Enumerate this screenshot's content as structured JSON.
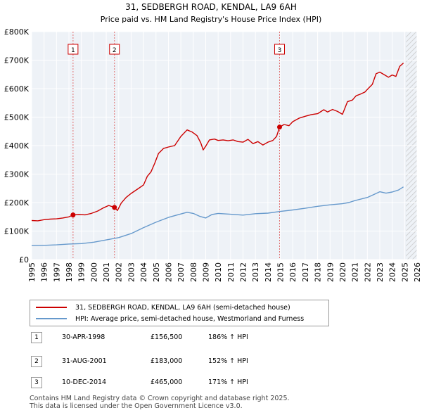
{
  "chart_data": {
    "type": "line",
    "title": "31, SEDBERGH ROAD, KENDAL, LA9 6AH",
    "subtitle": "Price paid vs. HM Land Registry's House Price Index (HPI)",
    "ylim": [
      0,
      800000
    ],
    "xlim": [
      1995,
      2026
    ],
    "y_ticks": [
      {
        "value": 0,
        "label": "£0"
      },
      {
        "value": 100000,
        "label": "£100K"
      },
      {
        "value": 200000,
        "label": "£200K"
      },
      {
        "value": 300000,
        "label": "£300K"
      },
      {
        "value": 400000,
        "label": "£400K"
      },
      {
        "value": 500000,
        "label": "£500K"
      },
      {
        "value": 600000,
        "label": "£600K"
      },
      {
        "value": 700000,
        "label": "£700K"
      },
      {
        "value": 800000,
        "label": "£800K"
      }
    ],
    "x_ticks": [
      "1995",
      "1996",
      "1997",
      "1998",
      "1999",
      "2000",
      "2001",
      "2002",
      "2003",
      "2004",
      "2005",
      "2006",
      "2007",
      "2008",
      "2009",
      "2010",
      "2011",
      "2012",
      "2013",
      "2014",
      "2015",
      "2016",
      "2017",
      "2018",
      "2019",
      "2020",
      "2021",
      "2022",
      "2023",
      "2024",
      "2025",
      "2026"
    ],
    "grid": true,
    "hatch_from": 2025.1,
    "series": [
      {
        "name": "31, SEDBERGH ROAD, KENDAL, LA9 6AH (semi-detached house)",
        "color": "#cc0000",
        "x": [
          1995.0,
          1995.5,
          1996.0,
          1996.5,
          1997.0,
          1997.5,
          1998.0,
          1998.33,
          1998.8,
          1999.3,
          1999.8,
          2000.3,
          2000.8,
          2001.2,
          2001.66,
          2001.9,
          2002.2,
          2002.6,
          2003.0,
          2003.5,
          2004.0,
          2004.3,
          2004.6,
          2004.9,
          2005.2,
          2005.6,
          2006.0,
          2006.5,
          2007.0,
          2007.5,
          2007.9,
          2008.3,
          2008.6,
          2008.8,
          2009.0,
          2009.3,
          2009.7,
          2010.0,
          2010.4,
          2010.8,
          2011.2,
          2011.6,
          2012.0,
          2012.4,
          2012.8,
          2013.2,
          2013.6,
          2014.0,
          2014.4,
          2014.7,
          2014.94,
          2015.3,
          2015.7,
          2016.0,
          2016.5,
          2017.0,
          2017.5,
          2018.0,
          2018.5,
          2018.8,
          2019.2,
          2019.6,
          2020.0,
          2020.4,
          2020.8,
          2021.1,
          2021.4,
          2021.8,
          2022.1,
          2022.4,
          2022.7,
          2023.0,
          2023.4,
          2023.7,
          2024.0,
          2024.3,
          2024.6,
          2024.9
        ],
        "values": [
          137000,
          136000,
          140000,
          142000,
          143000,
          146000,
          150000,
          156500,
          158000,
          157000,
          162000,
          170000,
          182000,
          190000,
          183000,
          172000,
          198000,
          218000,
          232000,
          247000,
          262000,
          292000,
          308000,
          338000,
          372000,
          390000,
          395000,
          400000,
          432000,
          455000,
          448000,
          435000,
          410000,
          385000,
          398000,
          420000,
          423000,
          418000,
          420000,
          417000,
          420000,
          414000,
          412000,
          422000,
          407000,
          414000,
          402000,
          412000,
          418000,
          432000,
          465000,
          474000,
          470000,
          484000,
          496000,
          503000,
          509000,
          512000,
          526000,
          518000,
          527000,
          520000,
          510000,
          554000,
          560000,
          575000,
          580000,
          588000,
          602000,
          615000,
          652000,
          658000,
          648000,
          640000,
          648000,
          643000,
          678000,
          690000
        ]
      },
      {
        "name": "HPI: Average price, semi-detached house, Westmorland and Furness",
        "color": "#6699cc",
        "x": [
          1995.0,
          1996.0,
          1997.0,
          1998.0,
          1999.0,
          2000.0,
          2001.0,
          2002.0,
          2003.0,
          2004.0,
          2005.0,
          2006.0,
          2007.0,
          2007.5,
          2008.0,
          2008.5,
          2009.0,
          2009.5,
          2010.0,
          2011.0,
          2012.0,
          2013.0,
          2014.0,
          2015.0,
          2016.0,
          2017.0,
          2018.0,
          2019.0,
          2020.0,
          2020.5,
          2021.0,
          2022.0,
          2022.5,
          2023.0,
          2023.5,
          2024.0,
          2024.5,
          2024.9
        ],
        "values": [
          49000,
          50000,
          51500,
          54500,
          56000,
          61000,
          69000,
          77000,
          91000,
          112000,
          131000,
          148000,
          160000,
          166000,
          162000,
          152000,
          146000,
          158000,
          162000,
          159000,
          156000,
          161000,
          163000,
          169000,
          174000,
          180000,
          187000,
          192000,
          196000,
          200000,
          207000,
          218000,
          228000,
          238000,
          233000,
          237000,
          244000,
          255000
        ]
      }
    ],
    "sales": [
      {
        "num": "1",
        "x": 1998.33,
        "value": 156500
      },
      {
        "num": "2",
        "x": 2001.66,
        "value": 183000
      },
      {
        "num": "3",
        "x": 2014.94,
        "value": 465000
      }
    ]
  },
  "legend": {
    "property_label": "31, SEDBERGH ROAD, KENDAL, LA9 6AH (semi-detached house)",
    "hpi_label": "HPI: Average price, semi-detached house, Westmorland and Furness",
    "property_color": "#cc0000",
    "hpi_color": "#6699cc"
  },
  "sales_table": [
    {
      "num": "1",
      "date": "30-APR-1998",
      "price": "£156,500",
      "hpi": "186% ↑ HPI"
    },
    {
      "num": "2",
      "date": "31-AUG-2001",
      "price": "£183,000",
      "hpi": "152% ↑ HPI"
    },
    {
      "num": "3",
      "date": "10-DEC-2014",
      "price": "£465,000",
      "hpi": "171% ↑ HPI"
    }
  ],
  "footer": {
    "line1": "Contains HM Land Registry data © Crown copyright and database right 2025.",
    "line2": "This data is licensed under the Open Government Licence v3.0."
  }
}
